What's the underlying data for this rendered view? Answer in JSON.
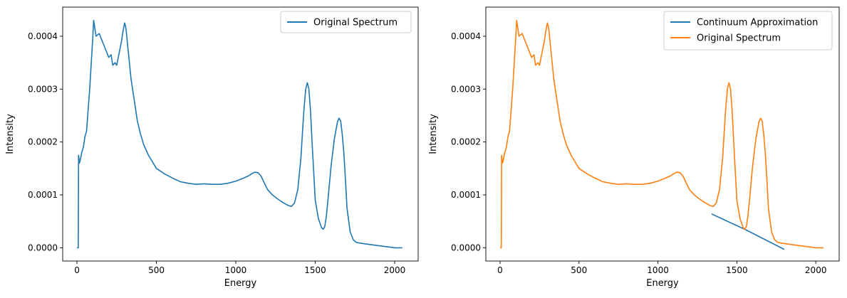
{
  "chart_data": [
    {
      "type": "line",
      "title": "",
      "xlabel": "Energy",
      "ylabel": "Intensity",
      "xlim": [
        -90,
        2148
      ],
      "ylim": [
        -2.5e-05,
        0.000455
      ],
      "xticks": [
        "0",
        "500",
        "1000",
        "1500",
        "2000"
      ],
      "yticks": [
        "0.0000",
        "0.0001",
        "0.0002",
        "0.0003",
        "0.0004"
      ],
      "legend": "upper right",
      "series": [
        {
          "name": "Original Spectrum",
          "color": "#1f77b4",
          "x": [
            0,
            8,
            10,
            15,
            20,
            30,
            40,
            50,
            60,
            70,
            80,
            90,
            100,
            105,
            110,
            115,
            120,
            140,
            160,
            180,
            200,
            215,
            225,
            240,
            250,
            260,
            270,
            280,
            290,
            300,
            305,
            310,
            320,
            330,
            340,
            350,
            360,
            370,
            380,
            400,
            420,
            450,
            500,
            550,
            600,
            650,
            700,
            750,
            800,
            850,
            900,
            950,
            1000,
            1050,
            1080,
            1100,
            1120,
            1140,
            1160,
            1180,
            1200,
            1230,
            1260,
            1300,
            1330,
            1350,
            1370,
            1390,
            1410,
            1420,
            1430,
            1440,
            1450,
            1460,
            1470,
            1480,
            1490,
            1500,
            1520,
            1540,
            1550,
            1560,
            1570,
            1580,
            1600,
            1620,
            1640,
            1650,
            1660,
            1670,
            1680,
            1690,
            1700,
            1720,
            1740,
            1760,
            1800,
            1850,
            1900,
            1950,
            1980,
            2000,
            2048
          ],
          "y": [
            0.0,
            0.0,
            0.000175,
            0.00016,
            0.000165,
            0.00018,
            0.00019,
            0.00021,
            0.00022,
            0.00026,
            0.0003,
            0.00035,
            0.0004,
            0.00043,
            0.00042,
            0.00041,
            0.0004,
            0.000405,
            0.00039,
            0.000375,
            0.00036,
            0.000365,
            0.000345,
            0.00035,
            0.000345,
            0.00036,
            0.000375,
            0.00039,
            0.00041,
            0.000425,
            0.00042,
            0.00041,
            0.00038,
            0.00035,
            0.00032,
            0.0003,
            0.00028,
            0.00026,
            0.00024,
            0.000215,
            0.000195,
            0.000175,
            0.00015,
            0.00014,
            0.000132,
            0.000125,
            0.000122,
            0.00012,
            0.000121,
            0.00012,
            0.00012,
            0.000122,
            0.000126,
            0.000132,
            0.000136,
            0.00014,
            0.000143,
            0.000142,
            0.000135,
            0.000122,
            0.00011,
            0.0001,
            9.3e-05,
            8.5e-05,
            8e-05,
            7.8e-05,
            8.5e-05,
            0.00011,
            0.00017,
            0.00022,
            0.000265,
            0.0003,
            0.000312,
            0.0003,
            0.00026,
            0.0002,
            0.000145,
            9e-05,
            5.5e-05,
            3.8e-05,
            3.5e-05,
            4e-05,
            6e-05,
            9e-05,
            0.000155,
            0.000205,
            0.000238,
            0.000245,
            0.00024,
            0.000215,
            0.00018,
            0.00013,
            7.5e-05,
            3e-05,
            1.5e-05,
            1e-05,
            8e-06,
            6e-06,
            4e-06,
            2e-06,
            1e-06,
            0.0,
            0.0
          ]
        }
      ]
    },
    {
      "type": "line",
      "title": "",
      "xlabel": "Energy",
      "ylabel": "Intensity",
      "xlim": [
        -90,
        2148
      ],
      "ylim": [
        -2.5e-05,
        0.000455
      ],
      "xticks": [
        "0",
        "500",
        "1000",
        "1500",
        "2000"
      ],
      "yticks": [
        "0.0000",
        "0.0001",
        "0.0002",
        "0.0003",
        "0.0004"
      ],
      "legend": "upper right",
      "series": [
        {
          "name": "Continuum Approximation",
          "color": "#1f77b4",
          "x": [
            1340,
            1550,
            1800
          ],
          "y": [
            6.4e-05,
            3.5e-05,
            -3e-06
          ]
        },
        {
          "name": "Original Spectrum",
          "color": "#ff7f0e",
          "x": [
            0,
            8,
            10,
            15,
            20,
            30,
            40,
            50,
            60,
            70,
            80,
            90,
            100,
            105,
            110,
            115,
            120,
            140,
            160,
            180,
            200,
            215,
            225,
            240,
            250,
            260,
            270,
            280,
            290,
            300,
            305,
            310,
            320,
            330,
            340,
            350,
            360,
            370,
            380,
            400,
            420,
            450,
            500,
            550,
            600,
            650,
            700,
            750,
            800,
            850,
            900,
            950,
            1000,
            1050,
            1080,
            1100,
            1120,
            1140,
            1160,
            1180,
            1200,
            1230,
            1260,
            1300,
            1330,
            1350,
            1370,
            1390,
            1410,
            1420,
            1430,
            1440,
            1450,
            1460,
            1470,
            1480,
            1490,
            1500,
            1520,
            1540,
            1550,
            1560,
            1570,
            1580,
            1600,
            1620,
            1640,
            1650,
            1660,
            1670,
            1680,
            1690,
            1700,
            1720,
            1740,
            1760,
            1800,
            1850,
            1900,
            1950,
            1980,
            2000,
            2048
          ],
          "y": [
            0.0,
            0.0,
            0.000175,
            0.00016,
            0.000165,
            0.00018,
            0.00019,
            0.00021,
            0.00022,
            0.00026,
            0.0003,
            0.00035,
            0.0004,
            0.00043,
            0.00042,
            0.00041,
            0.0004,
            0.000405,
            0.00039,
            0.000375,
            0.00036,
            0.000365,
            0.000345,
            0.00035,
            0.000345,
            0.00036,
            0.000375,
            0.00039,
            0.00041,
            0.000425,
            0.00042,
            0.00041,
            0.00038,
            0.00035,
            0.00032,
            0.0003,
            0.00028,
            0.00026,
            0.00024,
            0.000215,
            0.000195,
            0.000175,
            0.00015,
            0.00014,
            0.000132,
            0.000125,
            0.000122,
            0.00012,
            0.000121,
            0.00012,
            0.00012,
            0.000122,
            0.000126,
            0.000132,
            0.000136,
            0.00014,
            0.000143,
            0.000142,
            0.000135,
            0.000122,
            0.00011,
            0.0001,
            9.3e-05,
            8.5e-05,
            8e-05,
            7.8e-05,
            8.5e-05,
            0.00011,
            0.00017,
            0.00022,
            0.000265,
            0.0003,
            0.000312,
            0.0003,
            0.00026,
            0.0002,
            0.000145,
            9e-05,
            5.5e-05,
            3.8e-05,
            3.5e-05,
            4e-05,
            6e-05,
            9e-05,
            0.000155,
            0.000205,
            0.000238,
            0.000245,
            0.00024,
            0.000215,
            0.00018,
            0.00013,
            7.5e-05,
            3e-05,
            1.5e-05,
            1e-05,
            8e-06,
            6e-06,
            4e-06,
            2e-06,
            1e-06,
            0.0,
            0.0
          ]
        }
      ]
    }
  ]
}
